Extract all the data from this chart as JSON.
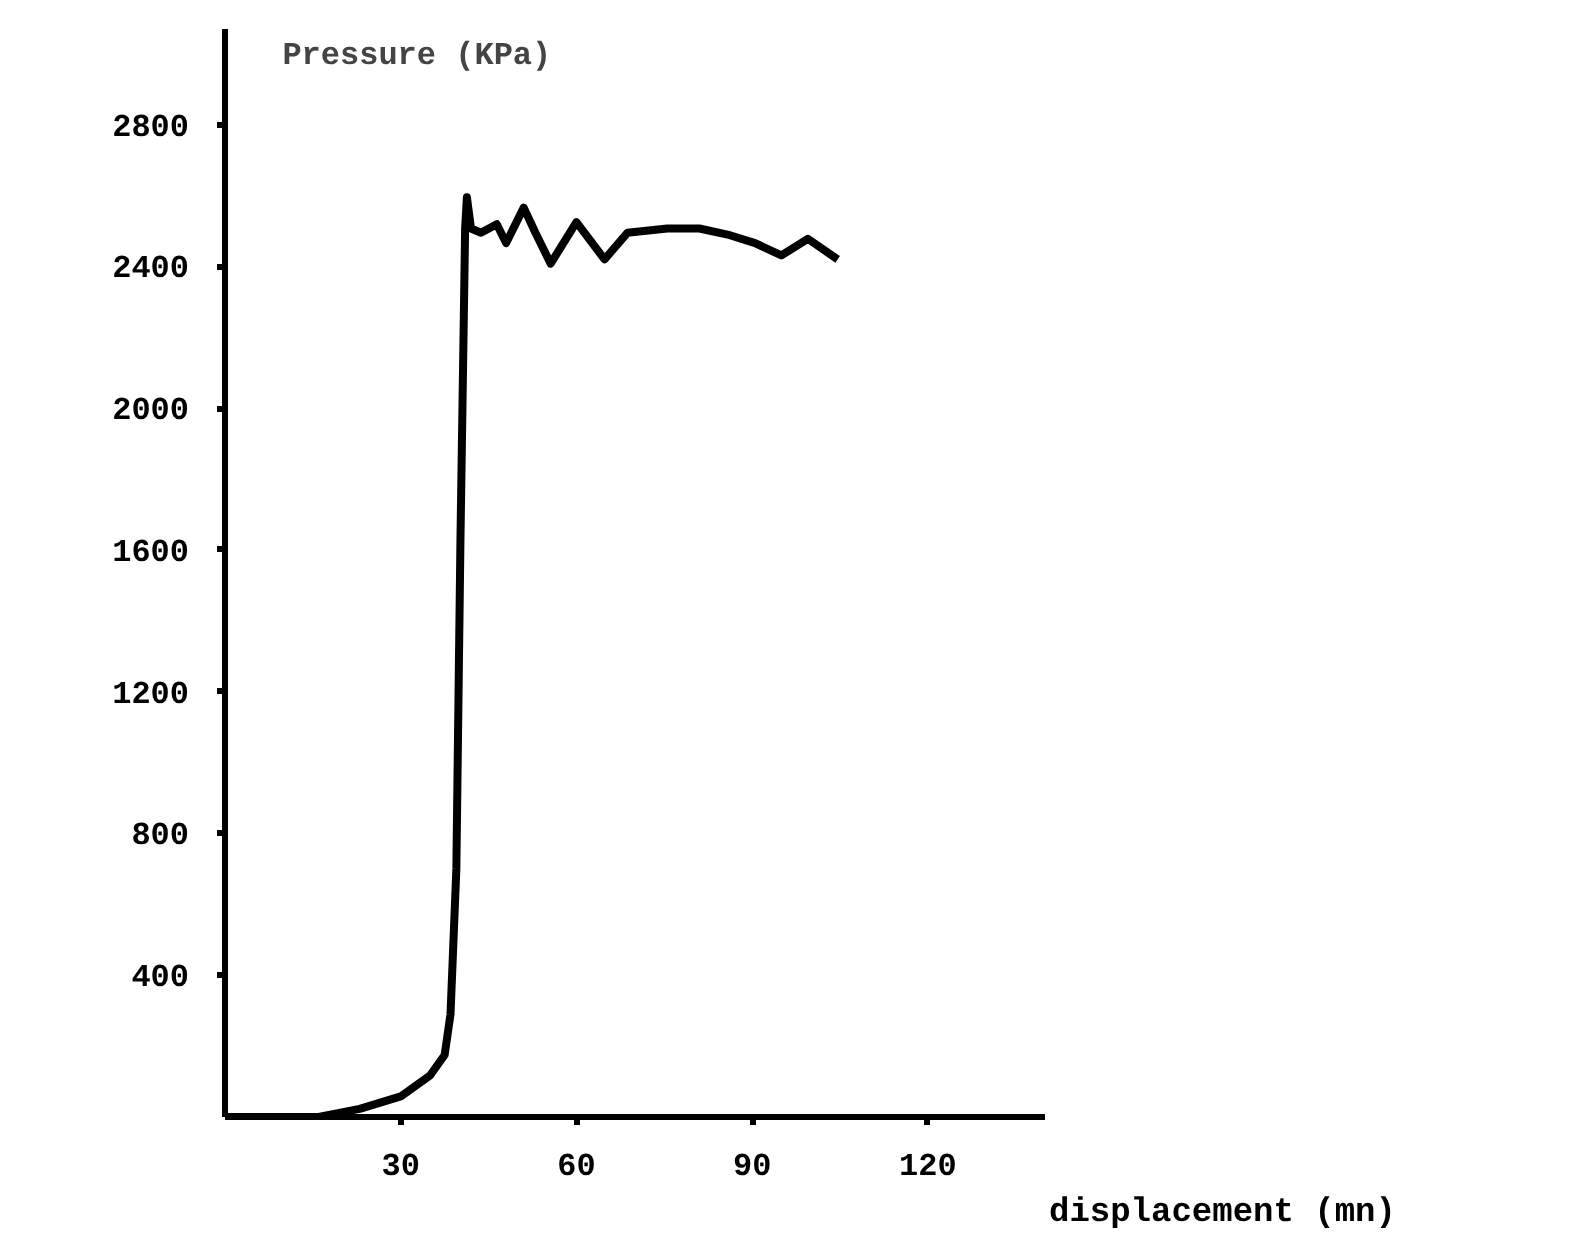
{
  "chart_data": {
    "type": "line",
    "ylabel": "Pressure (KPa)",
    "xlabel": "displacement (mn)",
    "xlim": [
      0,
      140
    ],
    "ylim": [
      0,
      3070
    ],
    "xticks": [
      30,
      60,
      90,
      120
    ],
    "yticks": [
      400,
      800,
      1200,
      1600,
      2000,
      2400,
      2800
    ],
    "grid": false,
    "marker": "none",
    "line_style": "solid",
    "series": [
      {
        "color": "#000000",
        "x": [
          0,
          16,
          23,
          30,
          35,
          37.5,
          38.5,
          39.5,
          40.2,
          41,
          41.3,
          42,
          43.7,
          46.4,
          48,
          51,
          53,
          55.6,
          60,
          64.8,
          68.7,
          75.5,
          81,
          85.8,
          90.5,
          95,
          99.5,
          104.6
        ],
        "values": [
          0,
          0,
          23,
          58,
          117,
          175,
          290,
          700,
          1630,
          2507,
          2595,
          2507,
          2495,
          2519,
          2466,
          2566,
          2495,
          2408,
          2525,
          2420,
          2495,
          2507,
          2507,
          2490,
          2466,
          2431,
          2478,
          2420
        ]
      }
    ]
  }
}
